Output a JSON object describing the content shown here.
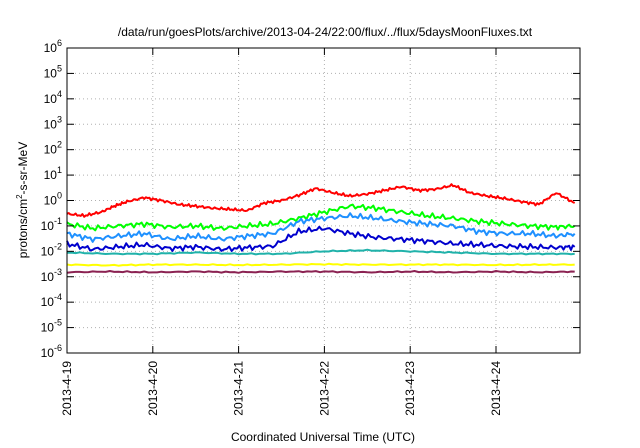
{
  "chart_data": {
    "type": "line",
    "title": "/data/run/goesPlots/archive/2013-04-24/22:00/flux/../flux/5daysMoonFluxes.txt",
    "xlabel": "Coordinated Universal Time (UTC)",
    "ylabel": "protons/cm²-s-sr-MeV",
    "ylabel_parts": {
      "pre": "protons/cm",
      "sup": "2",
      "post": "-s-sr-MeV"
    },
    "x_scale": "time (days)",
    "xlim": [
      "2013-04-19",
      "2013-04-24 22:00"
    ],
    "y_scale": "log",
    "ylim": [
      1e-06,
      1000000.0
    ],
    "yticks": [
      {
        "base": "10",
        "exp": "-6"
      },
      {
        "base": "10",
        "exp": "-5"
      },
      {
        "base": "10",
        "exp": "-4"
      },
      {
        "base": "10",
        "exp": "-3"
      },
      {
        "base": "10",
        "exp": "-2"
      },
      {
        "base": "10",
        "exp": "-1"
      },
      {
        "base": "10",
        "exp": "0"
      },
      {
        "base": "10",
        "exp": "1"
      },
      {
        "base": "10",
        "exp": "2"
      },
      {
        "base": "10",
        "exp": "3"
      },
      {
        "base": "10",
        "exp": "4"
      },
      {
        "base": "10",
        "exp": "5"
      },
      {
        "base": "10",
        "exp": "6"
      }
    ],
    "xticks": [
      "2013-4-19",
      "2013-4-20",
      "2013-4-21",
      "2013-4-22",
      "2013-4-23",
      "2013-4-24"
    ],
    "grid": true,
    "series": [
      {
        "color": "#ff0000",
        "x": [
          0,
          0.2,
          0.4,
          0.55,
          0.7,
          0.9,
          1.1,
          1.3,
          1.5,
          1.7,
          1.9,
          2.1,
          2.3,
          2.5,
          2.7,
          2.9,
          3.1,
          3.3,
          3.5,
          3.7,
          3.9,
          4.1,
          4.3,
          4.5,
          4.7,
          4.9,
          5.1,
          5.3,
          5.5,
          5.7,
          5.917
        ],
        "y": [
          0.3,
          0.25,
          0.35,
          0.6,
          0.9,
          1.3,
          1.0,
          0.7,
          0.6,
          0.5,
          0.45,
          0.4,
          0.8,
          1.0,
          1.6,
          3.0,
          2.0,
          1.5,
          1.8,
          2.5,
          3.5,
          2.5,
          2.8,
          4.0,
          2.0,
          1.5,
          1.2,
          0.9,
          0.7,
          2.0,
          0.8
        ]
      },
      {
        "color": "#00ff00",
        "x": [
          0,
          0.3,
          0.6,
          0.9,
          1.2,
          1.5,
          1.8,
          2.1,
          2.4,
          2.7,
          3.0,
          3.3,
          3.6,
          3.9,
          4.2,
          4.5,
          4.8,
          5.1,
          5.4,
          5.7,
          5.917
        ],
        "y": [
          0.12,
          0.08,
          0.1,
          0.12,
          0.09,
          0.1,
          0.08,
          0.1,
          0.12,
          0.2,
          0.35,
          0.6,
          0.5,
          0.35,
          0.25,
          0.2,
          0.15,
          0.12,
          0.1,
          0.09,
          0.1
        ]
      },
      {
        "color": "#1e90ff",
        "x": [
          0,
          0.3,
          0.6,
          0.9,
          1.2,
          1.5,
          1.8,
          2.1,
          2.4,
          2.7,
          3.0,
          3.3,
          3.6,
          3.9,
          4.2,
          4.5,
          4.8,
          5.1,
          5.4,
          5.7,
          5.917
        ],
        "y": [
          0.05,
          0.03,
          0.04,
          0.05,
          0.03,
          0.04,
          0.03,
          0.04,
          0.05,
          0.15,
          0.2,
          0.25,
          0.2,
          0.15,
          0.12,
          0.1,
          0.06,
          0.05,
          0.05,
          0.04,
          0.05
        ]
      },
      {
        "color": "#0000cd",
        "x": [
          0,
          0.3,
          0.6,
          0.9,
          1.2,
          1.5,
          1.8,
          2.1,
          2.4,
          2.7,
          3.0,
          3.3,
          3.6,
          3.9,
          4.2,
          4.5,
          4.8,
          5.1,
          5.4,
          5.7,
          5.917
        ],
        "y": [
          0.02,
          0.012,
          0.015,
          0.018,
          0.013,
          0.015,
          0.012,
          0.014,
          0.016,
          0.06,
          0.08,
          0.05,
          0.035,
          0.03,
          0.025,
          0.02,
          0.018,
          0.016,
          0.015,
          0.014,
          0.015
        ]
      },
      {
        "color": "#20b2aa",
        "x": [
          0,
          0.5,
          1.0,
          1.5,
          2.0,
          2.5,
          3.0,
          3.5,
          4.0,
          4.5,
          5.0,
          5.5,
          5.917
        ],
        "y": [
          0.009,
          0.008,
          0.008,
          0.009,
          0.008,
          0.008,
          0.01,
          0.011,
          0.01,
          0.009,
          0.008,
          0.008,
          0.008
        ]
      },
      {
        "color": "#ffff00",
        "x": [
          0,
          0.5,
          1.0,
          1.5,
          2.0,
          2.5,
          3.0,
          3.5,
          4.0,
          4.5,
          5.0,
          5.5,
          5.917
        ],
        "y": [
          0.003,
          0.0028,
          0.003,
          0.003,
          0.0029,
          0.003,
          0.0031,
          0.003,
          0.003,
          0.003,
          0.0029,
          0.003,
          0.003
        ]
      },
      {
        "color": "#8b2252",
        "x": [
          0,
          0.5,
          1.0,
          1.5,
          2.0,
          2.5,
          3.0,
          3.5,
          4.0,
          4.5,
          5.0,
          5.5,
          5.917
        ],
        "y": [
          0.0015,
          0.0016,
          0.0015,
          0.0016,
          0.0015,
          0.0016,
          0.0016,
          0.0015,
          0.0016,
          0.0015,
          0.0016,
          0.0015,
          0.0016
        ]
      }
    ]
  }
}
